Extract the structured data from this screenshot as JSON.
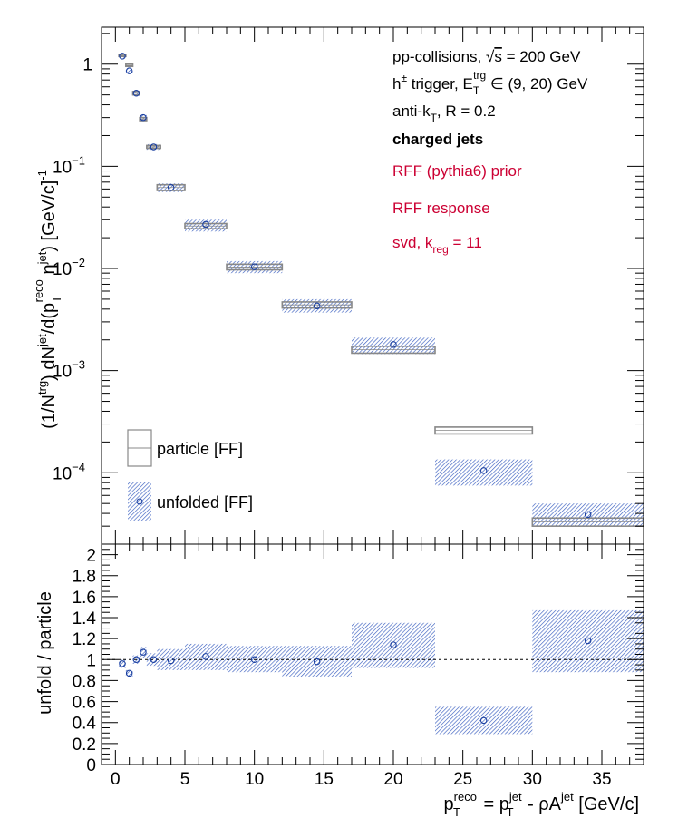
{
  "chart_data": [
    {
      "type": "scatter",
      "panel": "top",
      "yscale": "log",
      "ylim": [
        2e-05,
        2.3
      ],
      "xlim": [
        -1,
        38
      ],
      "ylabel": {
        "pre": "(1/N",
        "trg": "trg",
        "mid": ") dN",
        "jet": "jet",
        "mid2": "/d(p",
        "T": "T",
        "reco": "reco",
        "mid3": " η",
        "jet2": "jet",
        "end": ") [GeV/c]",
        "exp": "-1"
      },
      "ytick_labels": [
        {
          "value": 1,
          "base": "1",
          "exp": ""
        },
        {
          "value": 0.1,
          "base": "10",
          "exp": "−1"
        },
        {
          "value": 0.01,
          "base": "10",
          "exp": "−2"
        },
        {
          "value": 0.001,
          "base": "10",
          "exp": "−3"
        },
        {
          "value": 0.0001,
          "base": "10",
          "exp": "−4"
        }
      ],
      "annotations": {
        "line1_a": "pp-collisions, ",
        "line1_sqrt": "√",
        "line1_s": "s",
        "line1_b": " = 200 GeV",
        "line2_a": "h",
        "line2_pm": "±",
        "line2_b": " trigger, E",
        "line2_T": "T",
        "line2_trg": "trg",
        "line2_c": " ∈ (9, 20) GeV",
        "line3_a": "anti-k",
        "line3_T": "T",
        "line3_b": ", R = 0.2",
        "line4": "charged jets",
        "line5": "RFF (pythia6) prior",
        "line6": "RFF response",
        "line7_a": "svd, k",
        "line7_reg": "reg",
        "line7_b": " = 11"
      },
      "accent_color": "#cc0033",
      "series": [
        {
          "name": "particle [FF]",
          "style": "gray open box",
          "color": "#888888",
          "points": [
            {
              "x": 0.5,
              "xlo": 0.25,
              "xhi": 0.75,
              "y": 1.22,
              "ylo": 1.19,
              "yhi": 1.25
            },
            {
              "x": 1.0,
              "xlo": 0.75,
              "xhi": 1.25,
              "y": 0.97,
              "ylo": 0.95,
              "yhi": 1.0
            },
            {
              "x": 1.5,
              "xlo": 1.25,
              "xhi": 1.75,
              "y": 0.52,
              "ylo": 0.5,
              "yhi": 0.54
            },
            {
              "x": 2.0,
              "xlo": 1.75,
              "xhi": 2.25,
              "y": 0.29,
              "ylo": 0.28,
              "yhi": 0.3
            },
            {
              "x": 2.75,
              "xlo": 2.25,
              "xhi": 3.25,
              "y": 0.155,
              "ylo": 0.15,
              "yhi": 0.16
            },
            {
              "x": 4.0,
              "xlo": 3.0,
              "xhi": 5.0,
              "y": 0.062,
              "ylo": 0.058,
              "yhi": 0.066
            },
            {
              "x": 6.5,
              "xlo": 5.0,
              "xhi": 8.0,
              "y": 0.026,
              "ylo": 0.0245,
              "yhi": 0.0275
            },
            {
              "x": 10.0,
              "xlo": 8.0,
              "xhi": 12.0,
              "y": 0.0103,
              "ylo": 0.0097,
              "yhi": 0.011
            },
            {
              "x": 14.5,
              "xlo": 12.0,
              "xhi": 17.0,
              "y": 0.0044,
              "ylo": 0.0041,
              "yhi": 0.0047
            },
            {
              "x": 20.0,
              "xlo": 17.0,
              "xhi": 23.0,
              "y": 0.0016,
              "ylo": 0.00148,
              "yhi": 0.00173
            },
            {
              "x": 26.5,
              "xlo": 23.0,
              "xhi": 30.0,
              "y": 0.00026,
              "ylo": 0.00024,
              "yhi": 0.00028
            },
            {
              "x": 34.0,
              "xlo": 30.0,
              "xhi": 38.0,
              "y": 3.3e-05,
              "ylo": 3e-05,
              "yhi": 3.6e-05
            }
          ]
        },
        {
          "name": "unfolded [FF]",
          "style": "blue open circle with hatched uncertainty band",
          "color": "#1a3fa0",
          "band_color": "#3a5fc0",
          "points": [
            {
              "x": 0.5,
              "xlo": 0.25,
              "xhi": 0.75,
              "y": 1.2,
              "ylo": 1.16,
              "yhi": 1.24
            },
            {
              "x": 1.0,
              "xlo": 0.75,
              "xhi": 1.25,
              "y": 0.86,
              "ylo": 0.82,
              "yhi": 0.9
            },
            {
              "x": 1.5,
              "xlo": 1.25,
              "xhi": 1.75,
              "y": 0.52,
              "ylo": 0.49,
              "yhi": 0.55
            },
            {
              "x": 2.0,
              "xlo": 1.75,
              "xhi": 2.25,
              "y": 0.3,
              "ylo": 0.28,
              "yhi": 0.32
            },
            {
              "x": 2.75,
              "xlo": 2.25,
              "xhi": 3.25,
              "y": 0.155,
              "ylo": 0.145,
              "yhi": 0.165
            },
            {
              "x": 4.0,
              "xlo": 3.0,
              "xhi": 5.0,
              "y": 0.062,
              "ylo": 0.056,
              "yhi": 0.068
            },
            {
              "x": 6.5,
              "xlo": 5.0,
              "xhi": 8.0,
              "y": 0.027,
              "ylo": 0.023,
              "yhi": 0.03
            },
            {
              "x": 10.0,
              "xlo": 8.0,
              "xhi": 12.0,
              "y": 0.0104,
              "ylo": 0.009,
              "yhi": 0.0118
            },
            {
              "x": 14.5,
              "xlo": 12.0,
              "xhi": 17.0,
              "y": 0.0043,
              "ylo": 0.0037,
              "yhi": 0.005
            },
            {
              "x": 20.0,
              "xlo": 17.0,
              "xhi": 23.0,
              "y": 0.0018,
              "ylo": 0.00145,
              "yhi": 0.0021
            },
            {
              "x": 26.5,
              "xlo": 23.0,
              "xhi": 30.0,
              "y": 0.000105,
              "ylo": 7.5e-05,
              "yhi": 0.000135
            },
            {
              "x": 34.0,
              "xlo": 30.0,
              "xhi": 38.0,
              "y": 3.9e-05,
              "ylo": 3e-05,
              "yhi": 5e-05
            }
          ]
        }
      ]
    },
    {
      "type": "scatter",
      "panel": "bottom",
      "ylabel": "unfold / particle",
      "xlabel": {
        "p1": "p",
        "sup1": "reco",
        "sub1": "T",
        "eq": " = p",
        "sup2": "jet",
        "sub2": "T",
        "rest": " - ρA",
        "sup3": "jet",
        "unit": " [GeV/c]"
      },
      "xlim": [
        -1,
        38
      ],
      "ylim": [
        0,
        2.1
      ],
      "xticks": [
        0,
        5,
        10,
        15,
        20,
        25,
        30,
        35
      ],
      "xtick_labels": [
        "0",
        "5",
        "10",
        "15",
        "20",
        "25",
        "30",
        "35"
      ],
      "yticks": [
        0,
        0.2,
        0.4,
        0.6,
        0.8,
        1.0,
        1.2,
        1.4,
        1.6,
        1.8,
        2.0
      ],
      "ytick_labels": [
        "0",
        "0.2",
        "0.4",
        "0.6",
        "0.8",
        "1",
        "1.2",
        "1.4",
        "1.6",
        "1.8",
        "2"
      ],
      "reference_line": 1.0,
      "series": [
        {
          "name": "unfold / particle",
          "color": "#1a3fa0",
          "points": [
            {
              "x": 0.5,
              "xlo": 0.25,
              "xhi": 0.75,
              "y": 0.96,
              "ylo": 0.92,
              "yhi": 1.0
            },
            {
              "x": 1.0,
              "xlo": 0.75,
              "xhi": 1.25,
              "y": 0.87,
              "ylo": 0.84,
              "yhi": 0.9
            },
            {
              "x": 1.5,
              "xlo": 1.25,
              "xhi": 1.75,
              "y": 1.0,
              "ylo": 0.96,
              "yhi": 1.04
            },
            {
              "x": 2.0,
              "xlo": 1.75,
              "xhi": 2.25,
              "y": 1.07,
              "ylo": 1.02,
              "yhi": 1.12
            },
            {
              "x": 2.75,
              "xlo": 2.25,
              "xhi": 3.25,
              "y": 1.0,
              "ylo": 0.94,
              "yhi": 1.06
            },
            {
              "x": 4.0,
              "xlo": 3.0,
              "xhi": 5.0,
              "y": 0.99,
              "ylo": 0.9,
              "yhi": 1.1
            },
            {
              "x": 6.5,
              "xlo": 5.0,
              "xhi": 8.0,
              "y": 1.03,
              "ylo": 0.9,
              "yhi": 1.15
            },
            {
              "x": 10.0,
              "xlo": 8.0,
              "xhi": 12.0,
              "y": 1.0,
              "ylo": 0.88,
              "yhi": 1.13
            },
            {
              "x": 14.5,
              "xlo": 12.0,
              "xhi": 17.0,
              "y": 0.98,
              "ylo": 0.83,
              "yhi": 1.13
            },
            {
              "x": 20.0,
              "xlo": 17.0,
              "xhi": 23.0,
              "y": 1.14,
              "ylo": 0.92,
              "yhi": 1.35
            },
            {
              "x": 26.5,
              "xlo": 23.0,
              "xhi": 30.0,
              "y": 0.42,
              "ylo": 0.29,
              "yhi": 0.55
            },
            {
              "x": 34.0,
              "xlo": 30.0,
              "xhi": 38.0,
              "y": 1.18,
              "ylo": 0.88,
              "yhi": 1.47
            }
          ]
        }
      ]
    }
  ]
}
